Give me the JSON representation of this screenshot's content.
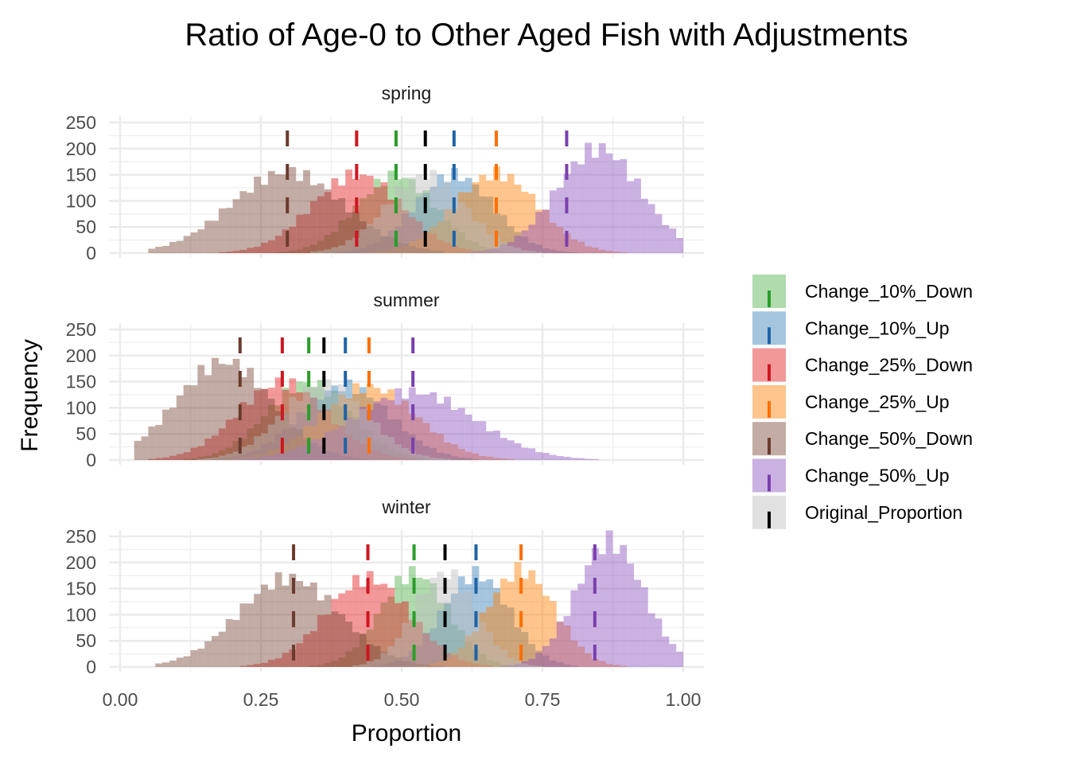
{
  "chart_data": {
    "type": "histogram",
    "title": "Ratio of Age-0 to Other Aged Fish with Adjustments",
    "xlabel": "Proportion",
    "ylabel": "Frequency",
    "x_ticks": [
      "0.00",
      "0.25",
      "0.50",
      "0.75",
      "1.00"
    ],
    "xlim": [
      0,
      1
    ],
    "y_ticks": [
      "0",
      "50",
      "100",
      "150",
      "200",
      "250"
    ],
    "ylim": [
      0,
      250
    ],
    "bin_width": 0.0125,
    "legend": {
      "position": "right",
      "entries": [
        "Change_10%_Down",
        "Change_10%_Up",
        "Change_25%_Down",
        "Change_25%_Up",
        "Change_50%_Down",
        "Change_50%_Up",
        "Original_Proportion"
      ]
    },
    "series": [
      {
        "name": "Change_10%_Down",
        "fill": "#4daf4a",
        "line": "#2a9d2a"
      },
      {
        "name": "Change_10%_Up",
        "fill": "#377eb8",
        "line": "#1f63a6"
      },
      {
        "name": "Change_25%_Down",
        "fill": "#e41a1c",
        "line": "#cf1620"
      },
      {
        "name": "Change_25%_Up",
        "fill": "#ff7f00",
        "line": "#ff6f00"
      },
      {
        "name": "Change_50%_Down",
        "fill": "#7a4737",
        "line": "#6b3a2e"
      },
      {
        "name": "Change_50%_Up",
        "fill": "#8c4fbf",
        "line": "#7a3fae"
      },
      {
        "name": "Original_Proportion",
        "fill": "#bdbdbd",
        "line": "#000000"
      }
    ],
    "facets": [
      {
        "label": "spring",
        "means": {
          "Change_10%_Down": 0.49,
          "Change_10%_Up": 0.593,
          "Change_25%_Down": 0.42,
          "Change_25%_Up": 0.668,
          "Change_50%_Down": 0.297,
          "Change_50%_Up": 0.793,
          "Original_Proportion": 0.542
        },
        "dists": {
          "Change_10%_Down": {
            "center": 0.49,
            "sd": 0.07,
            "peak": 148
          },
          "Change_10%_Up": {
            "center": 0.593,
            "sd": 0.07,
            "peak": 150
          },
          "Change_25%_Down": {
            "center": 0.42,
            "sd": 0.08,
            "peak": 150
          },
          "Change_25%_Up": {
            "center": 0.668,
            "sd": 0.075,
            "peak": 152
          },
          "Change_50%_Down": {
            "center": 0.297,
            "sd": 0.1,
            "peak": 155,
            "lo": 0.05,
            "hi": 0.57
          },
          "Change_50%_Up": {
            "center": 0.85,
            "sd": 0.075,
            "peak": 200,
            "lo": 0.57,
            "hi": 0.99
          },
          "Original_Proportion": {
            "center": 0.542,
            "sd": 0.07,
            "peak": 150
          }
        }
      },
      {
        "label": "summer",
        "means": {
          "Change_10%_Down": 0.335,
          "Change_10%_Up": 0.4,
          "Change_25%_Down": 0.288,
          "Change_25%_Up": 0.442,
          "Change_50%_Down": 0.213,
          "Change_50%_Up": 0.52,
          "Original_Proportion": 0.362
        },
        "dists": {
          "Change_10%_Down": {
            "center": 0.335,
            "sd": 0.075,
            "peak": 148
          },
          "Change_10%_Up": {
            "center": 0.4,
            "sd": 0.08,
            "peak": 142
          },
          "Change_25%_Down": {
            "center": 0.288,
            "sd": 0.08,
            "peak": 148
          },
          "Change_25%_Up": {
            "center": 0.442,
            "sd": 0.085,
            "peak": 140
          },
          "Change_50%_Down": {
            "center": 0.185,
            "sd": 0.085,
            "peak": 188,
            "lo": 0.03,
            "hi": 0.58
          },
          "Change_50%_Up": {
            "center": 0.52,
            "sd": 0.11,
            "peak": 130,
            "lo": 0.2,
            "hi": 0.9
          },
          "Original_Proportion": {
            "center": 0.362,
            "sd": 0.075,
            "peak": 146
          }
        }
      },
      {
        "label": "winter",
        "means": {
          "Change_10%_Down": 0.522,
          "Change_10%_Up": 0.632,
          "Change_25%_Down": 0.44,
          "Change_25%_Up": 0.712,
          "Change_50%_Down": 0.308,
          "Change_50%_Up": 0.843,
          "Original_Proportion": 0.577
        },
        "dists": {
          "Change_10%_Down": {
            "center": 0.522,
            "sd": 0.06,
            "peak": 180
          },
          "Change_10%_Up": {
            "center": 0.632,
            "sd": 0.06,
            "peak": 178
          },
          "Change_25%_Down": {
            "center": 0.44,
            "sd": 0.075,
            "peak": 170
          },
          "Change_25%_Up": {
            "center": 0.712,
            "sd": 0.06,
            "peak": 185
          },
          "Change_50%_Down": {
            "center": 0.3,
            "sd": 0.09,
            "peak": 170,
            "lo": 0.07,
            "hi": 0.58
          },
          "Change_50%_Up": {
            "center": 0.87,
            "sd": 0.06,
            "peak": 240,
            "lo": 0.62,
            "hi": 0.99
          },
          "Original_Proportion": {
            "center": 0.577,
            "sd": 0.055,
            "peak": 180
          }
        }
      }
    ]
  }
}
